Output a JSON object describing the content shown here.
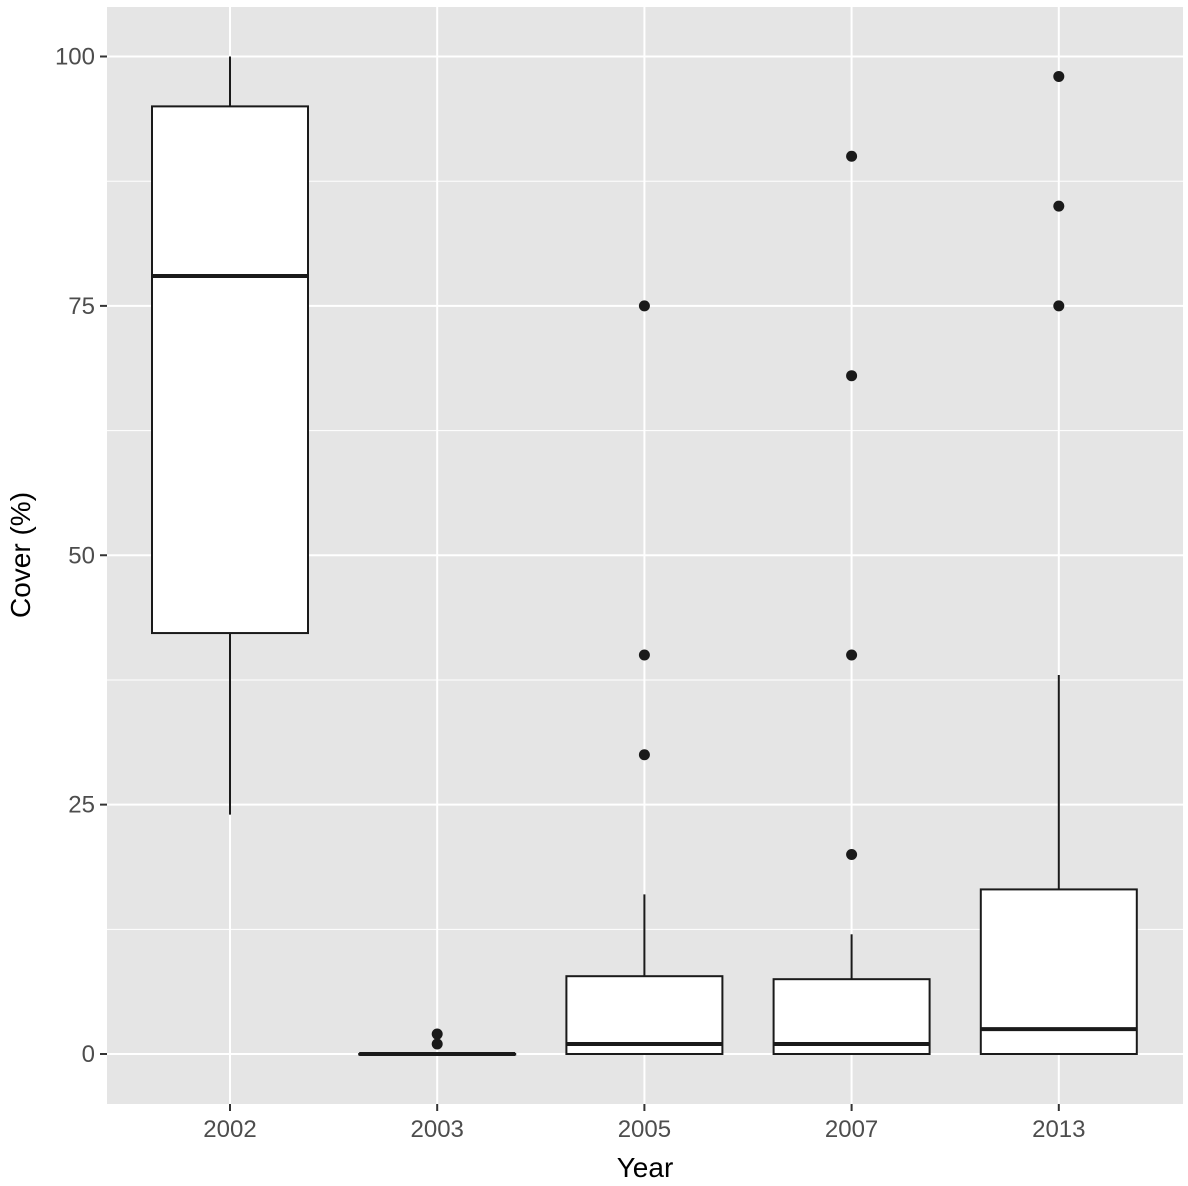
{
  "chart_data": {
    "type": "boxplot",
    "title": "",
    "xlabel": "Year",
    "ylabel": "Cover (%)",
    "ylim": [
      -5,
      105
    ],
    "y_ticks": [
      0,
      25,
      50,
      75,
      100
    ],
    "y_tick_labels": [
      "0",
      "25",
      "50",
      "75",
      "100"
    ],
    "grid": true,
    "categories": [
      "2002",
      "2003",
      "2005",
      "2007",
      "2013"
    ],
    "boxes": [
      {
        "category": "2002",
        "whisker_low": 24,
        "q1": 42.2,
        "median": 78,
        "q3": 95,
        "whisker_high": 100,
        "outliers": []
      },
      {
        "category": "2003",
        "whisker_low": 0,
        "q1": 0,
        "median": 0,
        "q3": 0,
        "whisker_high": 0,
        "outliers": [
          1,
          2
        ]
      },
      {
        "category": "2005",
        "whisker_low": 0,
        "q1": 0,
        "median": 1,
        "q3": 7.8,
        "whisker_high": 16,
        "outliers": [
          30,
          40,
          75
        ]
      },
      {
        "category": "2007",
        "whisker_low": 0,
        "q1": 0,
        "median": 1,
        "q3": 7.5,
        "whisker_high": 12,
        "outliers": [
          20,
          40,
          68,
          90
        ]
      },
      {
        "category": "2013",
        "whisker_low": 0,
        "q1": 0,
        "median": 2.5,
        "q3": 16.5,
        "whisker_high": 38,
        "outliers": [
          75,
          85,
          98
        ]
      }
    ],
    "colors": {
      "panel_background": "#e5e5e5",
      "grid_line": "#ffffff",
      "box_fill": "#ffffff",
      "box_stroke": "#1a1a1a",
      "tick_color": "#333333"
    }
  }
}
